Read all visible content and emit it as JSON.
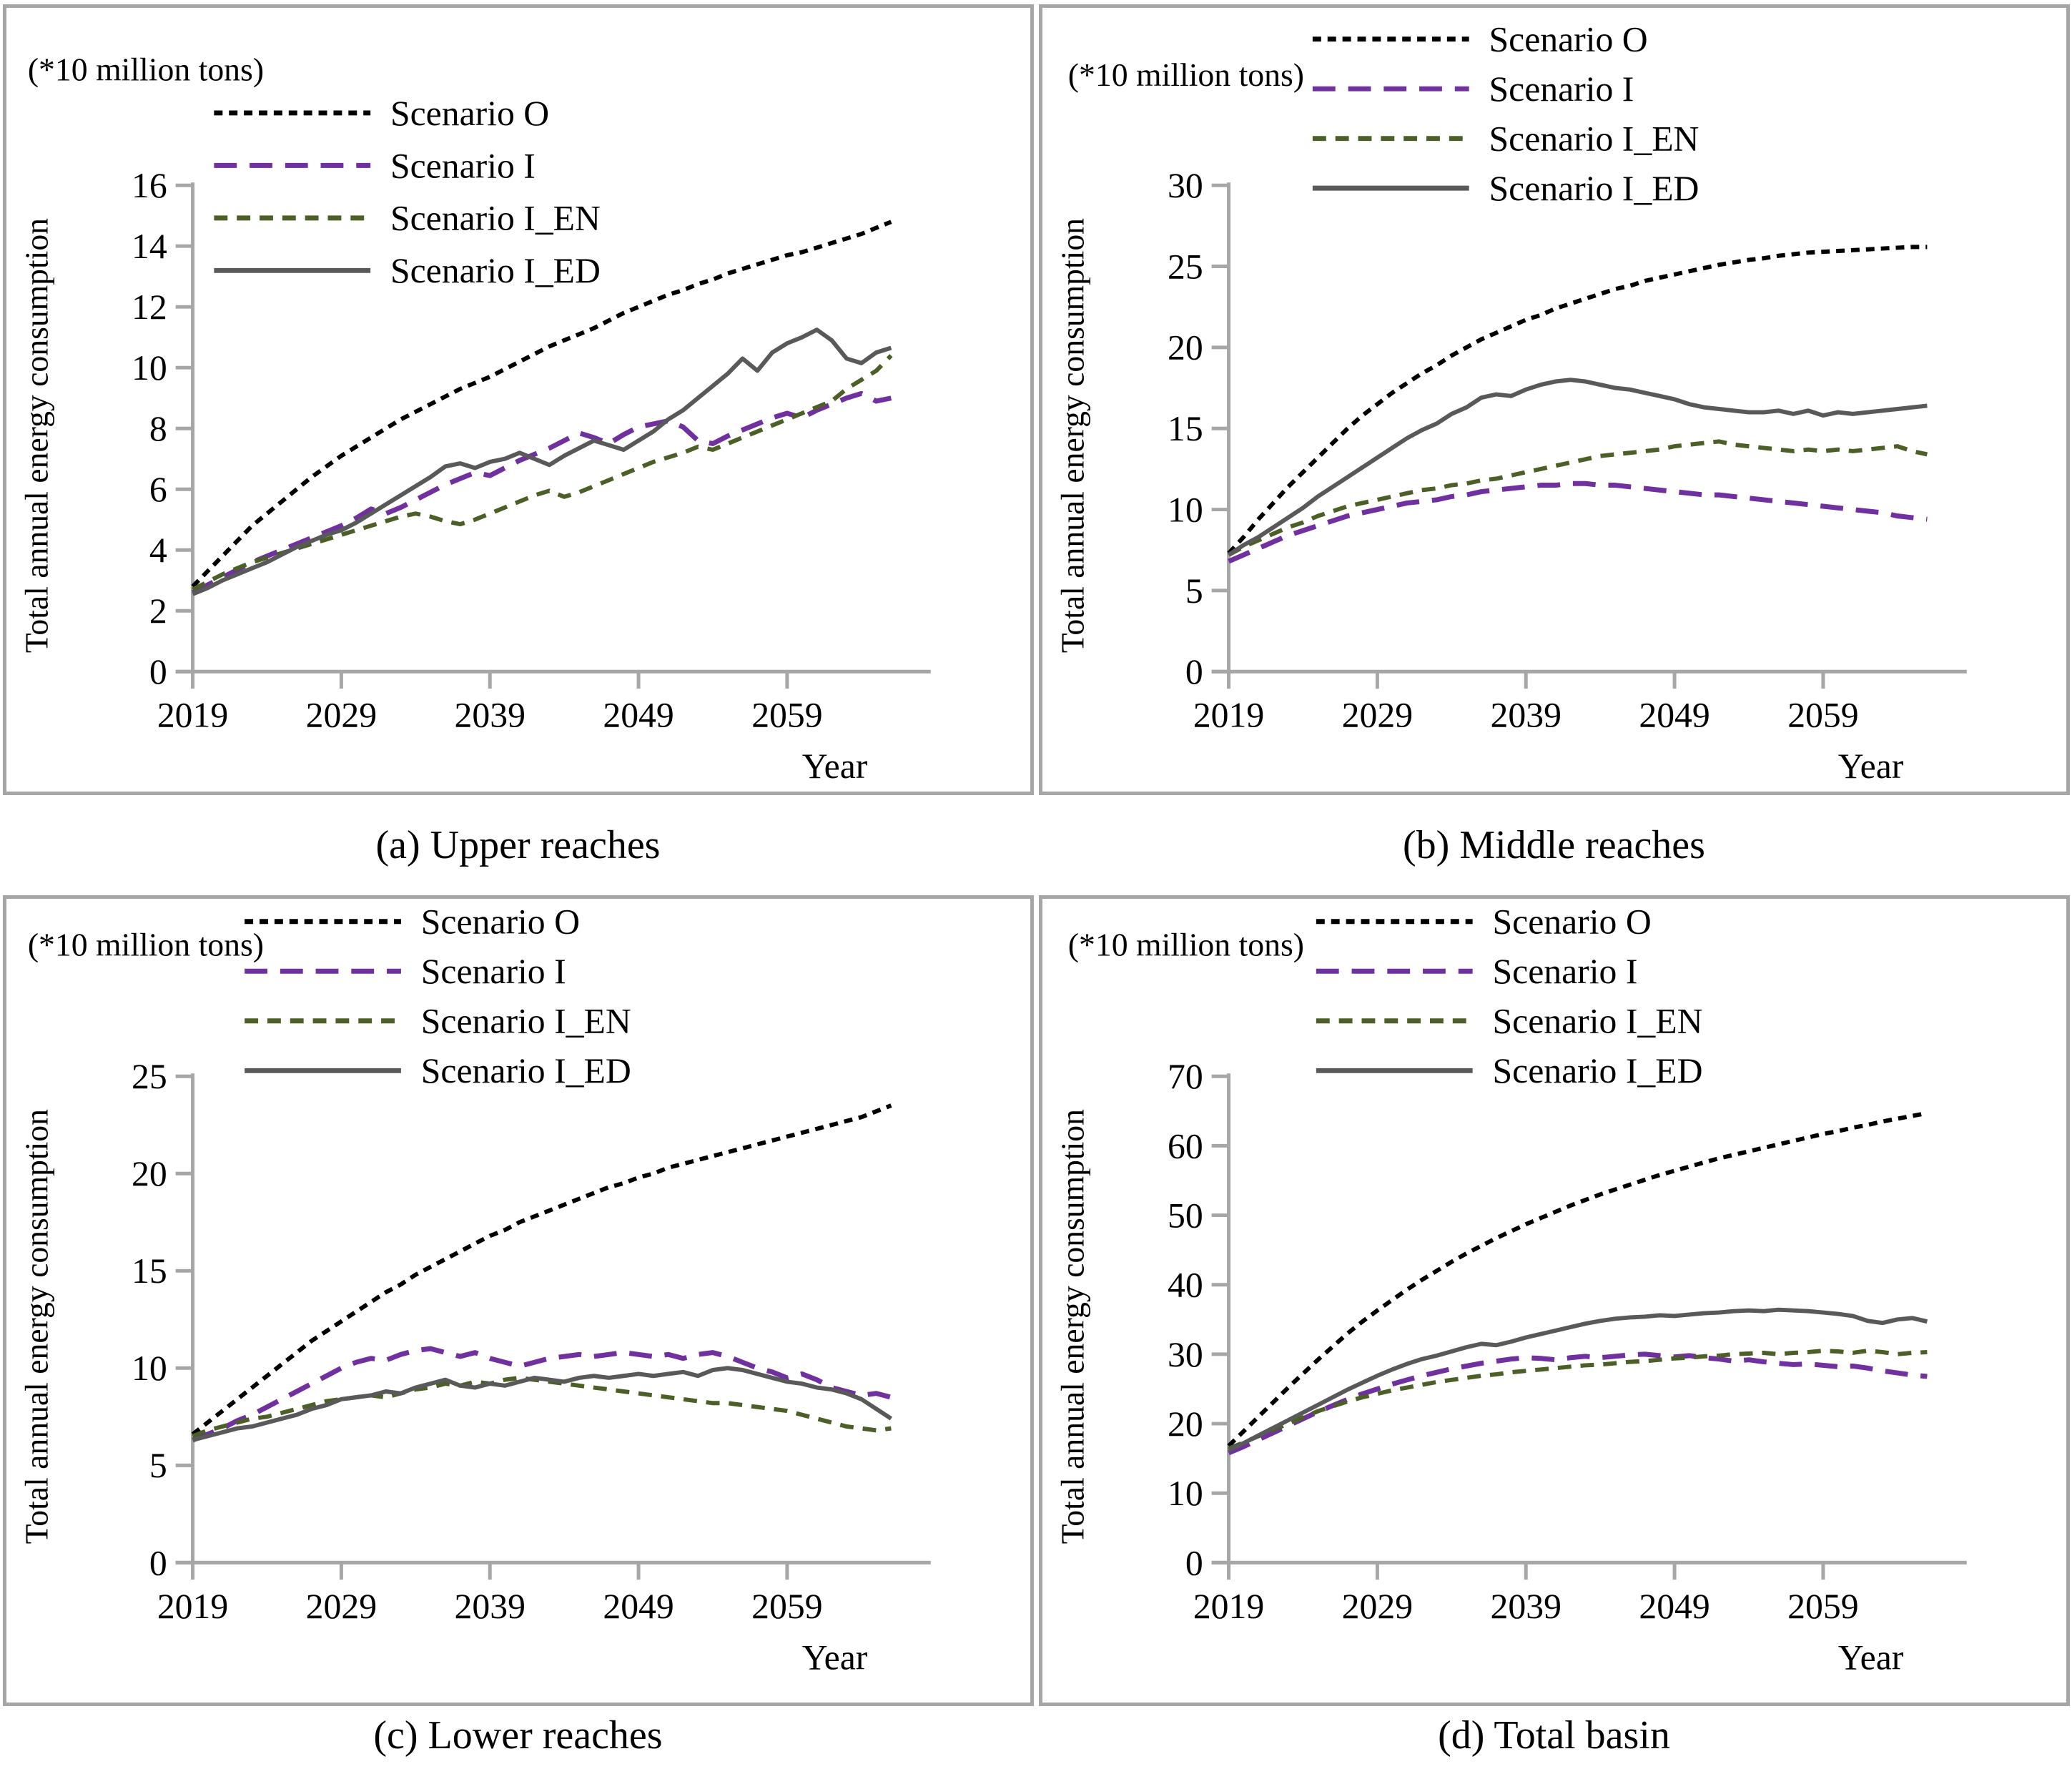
{
  "figure": {
    "units_label": "(*10 million tons)",
    "x_axis_label": "Year",
    "y_axis_label": "Total annual energy consumption",
    "colors": {
      "scenario_o": "#000000",
      "scenario_i": "#7030A0",
      "scenario_i_en": "#4C5F27",
      "scenario_i_ed": "#595959",
      "axis": "#A6A6A6",
      "text": "#000000"
    }
  },
  "chart_data": [
    {
      "type": "line",
      "title": "(a) Upper reaches",
      "units": "(*10 million tons)",
      "xlabel": "Year",
      "ylabel": "Total annual energy consumption",
      "x_start": 2019,
      "x_end": 2066,
      "x_ticks": [
        2019,
        2029,
        2039,
        2049,
        2059
      ],
      "ylim": [
        0,
        16
      ],
      "y_ticks": [
        0,
        2,
        4,
        6,
        8,
        10,
        12,
        14,
        16
      ],
      "grid": false,
      "legend_position": "top-inside",
      "series": [
        {
          "name": "Scenario O",
          "color": "#000000",
          "dash": "dotted",
          "values": [
            2.8,
            3.3,
            3.8,
            4.3,
            4.8,
            5.2,
            5.6,
            6.0,
            6.4,
            6.75,
            7.1,
            7.4,
            7.7,
            8.0,
            8.3,
            8.55,
            8.8,
            9.05,
            9.3,
            9.5,
            9.7,
            9.95,
            10.2,
            10.45,
            10.7,
            10.9,
            11.1,
            11.3,
            11.55,
            11.8,
            12.0,
            12.2,
            12.4,
            12.55,
            12.75,
            12.9,
            13.1,
            13.25,
            13.4,
            13.55,
            13.7,
            13.8,
            13.95,
            14.1,
            14.25,
            14.4,
            14.6,
            14.8
          ]
        },
        {
          "name": "Scenario I",
          "color": "#7030A0",
          "dash": "long-dash",
          "values": [
            2.6,
            2.85,
            3.1,
            3.35,
            3.6,
            3.8,
            4.0,
            4.2,
            4.4,
            4.6,
            4.8,
            5.05,
            5.35,
            5.2,
            5.4,
            5.65,
            5.9,
            6.15,
            6.35,
            6.55,
            6.45,
            6.7,
            6.95,
            7.15,
            7.35,
            7.6,
            7.85,
            7.7,
            7.5,
            7.8,
            8.05,
            8.15,
            8.25,
            8.05,
            7.6,
            7.5,
            7.75,
            7.95,
            8.15,
            8.35,
            8.5,
            8.35,
            8.6,
            8.8,
            9.0,
            9.15,
            8.9,
            9.0
          ]
        },
        {
          "name": "Scenario I_EN",
          "color": "#4C5F27",
          "dash": "dash",
          "values": [
            2.7,
            2.95,
            3.2,
            3.4,
            3.6,
            3.75,
            3.9,
            4.05,
            4.2,
            4.35,
            4.5,
            4.65,
            4.8,
            4.95,
            5.1,
            5.2,
            5.1,
            4.95,
            4.85,
            5.0,
            5.2,
            5.4,
            5.6,
            5.8,
            5.95,
            5.75,
            5.9,
            6.1,
            6.3,
            6.5,
            6.7,
            6.9,
            7.05,
            7.2,
            7.4,
            7.3,
            7.5,
            7.7,
            7.9,
            8.1,
            8.3,
            8.5,
            8.7,
            8.9,
            9.3,
            9.6,
            9.9,
            10.4
          ]
        },
        {
          "name": "Scenario I_ED",
          "color": "#595959",
          "dash": "solid",
          "values": [
            2.55,
            2.75,
            3.0,
            3.2,
            3.4,
            3.6,
            3.85,
            4.1,
            4.3,
            4.5,
            4.65,
            4.9,
            5.2,
            5.5,
            5.8,
            6.1,
            6.4,
            6.75,
            6.85,
            6.7,
            6.9,
            7.0,
            7.2,
            7.0,
            6.8,
            7.1,
            7.35,
            7.6,
            7.45,
            7.3,
            7.6,
            7.9,
            8.3,
            8.6,
            9.0,
            9.4,
            9.8,
            10.3,
            9.9,
            10.5,
            10.8,
            11.0,
            11.25,
            10.9,
            10.3,
            10.15,
            10.5,
            10.65
          ]
        }
      ]
    },
    {
      "type": "line",
      "title": "(b) Middle reaches",
      "units": "(*10 million tons)",
      "xlabel": "Year",
      "ylabel": "Total annual energy consumption",
      "x_start": 2019,
      "x_end": 2066,
      "x_ticks": [
        2019,
        2029,
        2039,
        2049,
        2059
      ],
      "ylim": [
        0,
        30
      ],
      "y_ticks": [
        0,
        5,
        10,
        15,
        20,
        25,
        30
      ],
      "grid": false,
      "legend_position": "top-inside",
      "series": [
        {
          "name": "Scenario O",
          "color": "#000000",
          "dash": "dotted",
          "values": [
            7.3,
            8.3,
            9.4,
            10.4,
            11.4,
            12.3,
            13.2,
            14.1,
            15.0,
            15.8,
            16.5,
            17.2,
            17.8,
            18.4,
            18.9,
            19.5,
            20.0,
            20.5,
            20.9,
            21.3,
            21.7,
            22.0,
            22.4,
            22.7,
            23.0,
            23.3,
            23.6,
            23.8,
            24.1,
            24.3,
            24.5,
            24.7,
            24.9,
            25.1,
            25.25,
            25.4,
            25.5,
            25.65,
            25.75,
            25.85,
            25.9,
            25.95,
            26.0,
            26.05,
            26.1,
            26.15,
            26.2,
            26.2
          ]
        },
        {
          "name": "Scenario I",
          "color": "#7030A0",
          "dash": "long-dash",
          "values": [
            6.8,
            7.2,
            7.6,
            8.0,
            8.4,
            8.7,
            9.0,
            9.3,
            9.6,
            9.8,
            10.0,
            10.2,
            10.4,
            10.5,
            10.6,
            10.8,
            10.9,
            11.1,
            11.2,
            11.3,
            11.4,
            11.5,
            11.5,
            11.6,
            11.6,
            11.5,
            11.5,
            11.4,
            11.3,
            11.2,
            11.1,
            11.0,
            10.9,
            10.9,
            10.8,
            10.7,
            10.6,
            10.5,
            10.4,
            10.3,
            10.2,
            10.1,
            10.0,
            9.9,
            9.8,
            9.6,
            9.5,
            9.4
          ]
        },
        {
          "name": "Scenario I_EN",
          "color": "#4C5F27",
          "dash": "dash",
          "values": [
            7.2,
            7.7,
            8.1,
            8.5,
            8.9,
            9.2,
            9.6,
            9.9,
            10.2,
            10.4,
            10.6,
            10.8,
            11.0,
            11.2,
            11.3,
            11.5,
            11.6,
            11.8,
            11.9,
            12.1,
            12.3,
            12.5,
            12.7,
            12.9,
            13.1,
            13.3,
            13.4,
            13.5,
            13.6,
            13.7,
            13.9,
            14.0,
            14.1,
            14.2,
            14.0,
            13.9,
            13.8,
            13.7,
            13.6,
            13.7,
            13.6,
            13.7,
            13.6,
            13.7,
            13.8,
            13.9,
            13.6,
            13.4
          ]
        },
        {
          "name": "Scenario I_ED",
          "color": "#595959",
          "dash": "solid",
          "values": [
            7.2,
            7.8,
            8.3,
            8.9,
            9.5,
            10.1,
            10.8,
            11.4,
            12.0,
            12.6,
            13.2,
            13.8,
            14.4,
            14.9,
            15.3,
            15.9,
            16.3,
            16.9,
            17.1,
            17.0,
            17.4,
            17.7,
            17.9,
            18.0,
            17.9,
            17.7,
            17.5,
            17.4,
            17.2,
            17.0,
            16.8,
            16.5,
            16.3,
            16.2,
            16.1,
            16.0,
            16.0,
            16.1,
            15.9,
            16.1,
            15.8,
            16.0,
            15.9,
            16.0,
            16.1,
            16.2,
            16.3,
            16.4
          ]
        }
      ]
    },
    {
      "type": "line",
      "title": "(c) Lower reaches",
      "units": "(*10 million tons)",
      "xlabel": "Year",
      "ylabel": "Total annual energy consumption",
      "x_start": 2019,
      "x_end": 2066,
      "x_ticks": [
        2019,
        2029,
        2039,
        2049,
        2059
      ],
      "ylim": [
        0,
        25
      ],
      "y_ticks": [
        0,
        5,
        10,
        15,
        20,
        25
      ],
      "grid": false,
      "legend_position": "top-inside",
      "series": [
        {
          "name": "Scenario O",
          "color": "#000000",
          "dash": "dotted",
          "values": [
            6.6,
            7.2,
            7.8,
            8.4,
            9.0,
            9.6,
            10.2,
            10.8,
            11.4,
            11.9,
            12.4,
            12.9,
            13.4,
            13.9,
            14.3,
            14.8,
            15.2,
            15.6,
            16.0,
            16.4,
            16.8,
            17.1,
            17.5,
            17.8,
            18.1,
            18.4,
            18.7,
            19.0,
            19.3,
            19.5,
            19.8,
            20.0,
            20.3,
            20.5,
            20.7,
            20.9,
            21.1,
            21.3,
            21.5,
            21.7,
            21.9,
            22.1,
            22.3,
            22.5,
            22.7,
            22.9,
            23.2,
            23.5
          ]
        },
        {
          "name": "Scenario I",
          "color": "#7030A0",
          "dash": "long-dash",
          "values": [
            6.3,
            6.6,
            6.9,
            7.3,
            7.6,
            8.0,
            8.4,
            8.8,
            9.2,
            9.6,
            10.0,
            10.3,
            10.5,
            10.4,
            10.7,
            10.9,
            11.0,
            10.8,
            10.6,
            10.8,
            10.5,
            10.3,
            10.1,
            10.3,
            10.5,
            10.6,
            10.7,
            10.6,
            10.7,
            10.8,
            10.7,
            10.6,
            10.7,
            10.5,
            10.7,
            10.8,
            10.6,
            10.3,
            10.0,
            9.8,
            9.5,
            9.7,
            9.4,
            9.0,
            8.8,
            8.6,
            8.7,
            8.5
          ]
        },
        {
          "name": "Scenario I_EN",
          "color": "#4C5F27",
          "dash": "dash",
          "values": [
            6.5,
            6.8,
            7.0,
            7.2,
            7.4,
            7.5,
            7.7,
            7.9,
            8.1,
            8.3,
            8.4,
            8.5,
            8.6,
            8.5,
            8.7,
            8.9,
            9.0,
            9.2,
            9.1,
            9.3,
            9.2,
            9.4,
            9.5,
            9.4,
            9.3,
            9.2,
            9.1,
            9.0,
            8.9,
            8.8,
            8.7,
            8.6,
            8.5,
            8.4,
            8.3,
            8.2,
            8.2,
            8.1,
            8.0,
            7.9,
            7.8,
            7.6,
            7.4,
            7.2,
            7.0,
            6.9,
            6.8,
            6.9
          ]
        },
        {
          "name": "Scenario I_ED",
          "color": "#595959",
          "dash": "solid",
          "values": [
            6.3,
            6.5,
            6.7,
            6.9,
            7.0,
            7.2,
            7.4,
            7.6,
            7.9,
            8.1,
            8.4,
            8.5,
            8.6,
            8.8,
            8.7,
            9.0,
            9.2,
            9.4,
            9.1,
            9.0,
            9.2,
            9.1,
            9.3,
            9.5,
            9.4,
            9.3,
            9.5,
            9.6,
            9.5,
            9.6,
            9.7,
            9.6,
            9.7,
            9.8,
            9.6,
            9.9,
            10.0,
            9.9,
            9.7,
            9.5,
            9.3,
            9.2,
            9.0,
            8.9,
            8.7,
            8.4,
            7.9,
            7.4
          ]
        }
      ]
    },
    {
      "type": "line",
      "title": "(d) Total basin",
      "units": "(*10 million tons)",
      "xlabel": "Year",
      "ylabel": "Total annual energy consumption",
      "x_start": 2019,
      "x_end": 2066,
      "x_ticks": [
        2019,
        2029,
        2039,
        2049,
        2059
      ],
      "ylim": [
        0,
        70
      ],
      "y_ticks": [
        0,
        10,
        20,
        30,
        40,
        50,
        60,
        70
      ],
      "grid": false,
      "legend_position": "top-inside",
      "series": [
        {
          "name": "Scenario O",
          "color": "#000000",
          "dash": "dotted",
          "values": [
            16.8,
            18.9,
            21.0,
            23.1,
            25.2,
            27.2,
            29.2,
            31.1,
            33.0,
            34.7,
            36.3,
            37.8,
            39.3,
            40.7,
            42.0,
            43.3,
            44.5,
            45.6,
            46.7,
            47.7,
            48.7,
            49.6,
            50.5,
            51.4,
            52.2,
            53.0,
            53.7,
            54.4,
            55.1,
            55.8,
            56.4,
            57.0,
            57.6,
            58.2,
            58.7,
            59.2,
            59.7,
            60.2,
            60.7,
            61.2,
            61.7,
            62.1,
            62.6,
            63.0,
            63.5,
            63.9,
            64.3,
            64.7
          ]
        },
        {
          "name": "Scenario I",
          "color": "#7030A0",
          "dash": "long-dash",
          "values": [
            15.8,
            16.7,
            17.7,
            18.7,
            19.7,
            20.7,
            21.7,
            22.6,
            23.5,
            24.3,
            25.0,
            25.7,
            26.3,
            26.9,
            27.4,
            27.9,
            28.3,
            28.7,
            29.0,
            29.3,
            29.5,
            29.4,
            29.2,
            29.5,
            29.7,
            29.5,
            29.7,
            29.9,
            30.0,
            29.8,
            29.6,
            29.8,
            29.5,
            29.3,
            29.0,
            29.2,
            28.9,
            28.7,
            28.5,
            28.6,
            28.4,
            28.2,
            28.3,
            28.0,
            27.6,
            27.3,
            27.0,
            26.8
          ]
        },
        {
          "name": "Scenario I_EN",
          "color": "#4C5F27",
          "dash": "dash",
          "values": [
            16.4,
            17.3,
            18.2,
            19.1,
            20.0,
            20.9,
            21.8,
            22.5,
            23.2,
            23.8,
            24.3,
            24.8,
            25.2,
            25.6,
            26.0,
            26.3,
            26.6,
            26.9,
            27.1,
            27.4,
            27.6,
            27.8,
            28.0,
            28.2,
            28.4,
            28.5,
            28.7,
            28.9,
            29.0,
            29.2,
            29.4,
            29.5,
            29.7,
            29.8,
            30.0,
            30.1,
            30.2,
            30.0,
            30.2,
            30.3,
            30.5,
            30.4,
            30.2,
            30.5,
            30.3,
            30.0,
            30.2,
            30.3
          ]
        },
        {
          "name": "Scenario I_ED",
          "color": "#595959",
          "dash": "solid",
          "values": [
            16.2,
            17.2,
            18.3,
            19.4,
            20.5,
            21.6,
            22.7,
            23.8,
            24.9,
            25.9,
            26.9,
            27.8,
            28.6,
            29.3,
            29.8,
            30.4,
            31.0,
            31.5,
            31.3,
            31.8,
            32.4,
            32.9,
            33.4,
            33.9,
            34.4,
            34.8,
            35.1,
            35.3,
            35.4,
            35.6,
            35.5,
            35.7,
            35.9,
            36.0,
            36.2,
            36.3,
            36.2,
            36.4,
            36.3,
            36.2,
            36.0,
            35.8,
            35.5,
            34.8,
            34.5,
            35.0,
            35.2,
            34.7
          ]
        }
      ]
    }
  ]
}
